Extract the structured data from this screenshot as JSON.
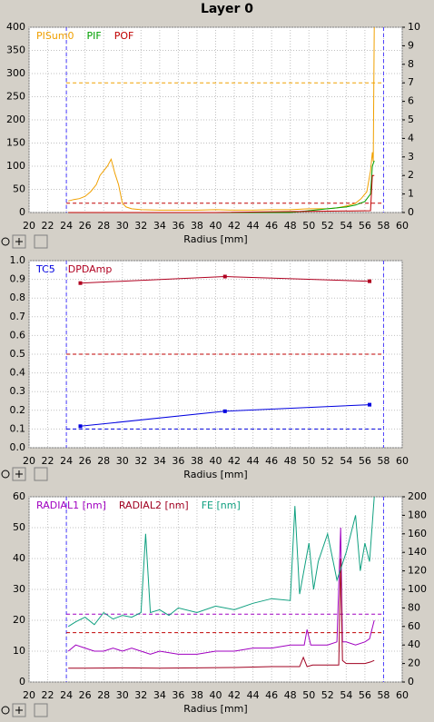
{
  "title": "Layer 0",
  "chart_data": [
    {
      "type": "line",
      "xlabel": "Radius [mm]",
      "xlim": [
        20,
        60
      ],
      "xticks": [
        20,
        22,
        24,
        26,
        28,
        30,
        32,
        34,
        36,
        38,
        40,
        42,
        44,
        46,
        48,
        50,
        52,
        54,
        56,
        58,
        60
      ],
      "ylim": [
        0,
        400
      ],
      "yticks": [
        0,
        50,
        100,
        150,
        200,
        250,
        300,
        350,
        400
      ],
      "y2lim": [
        0,
        10
      ],
      "y2ticks": [
        0,
        1,
        2,
        3,
        4,
        5,
        6,
        7,
        8,
        9,
        10
      ],
      "x_ref_lines": [
        24,
        58
      ],
      "x_ref_color": "#4a3cff",
      "ref_lines": [
        {
          "value": 280,
          "axis": "y",
          "color": "#f0a000"
        },
        {
          "value": 0.5,
          "axis": "y2",
          "color": "#c00000"
        }
      ],
      "series": [
        {
          "name": "PISum0",
          "color": "#f0a000",
          "x": [
            24.2,
            24.8,
            25.4,
            26,
            26.6,
            27.2,
            27.6,
            28,
            28.4,
            28.8,
            29.2,
            29.6,
            30,
            30.4,
            31,
            32,
            34,
            36,
            38,
            40,
            42,
            44,
            46,
            48,
            50,
            52,
            53,
            54,
            55,
            55.6,
            56.2,
            56.6,
            56.8,
            56.9,
            57
          ],
          "values": [
            25,
            28,
            30,
            35,
            45,
            60,
            80,
            90,
            100,
            115,
            85,
            60,
            20,
            12,
            8,
            6,
            5,
            5,
            5,
            6,
            5,
            5,
            6,
            6,
            8,
            8,
            10,
            14,
            20,
            30,
            45,
            90,
            130,
            110,
            400
          ]
        },
        {
          "name": "PIF",
          "color": "#00a000",
          "axis": "y2",
          "x": [
            24.2,
            30,
            40,
            48,
            50,
            52,
            54,
            55,
            56,
            56.6,
            56.8,
            57
          ],
          "values": [
            0,
            0,
            0,
            0,
            0.1,
            0.2,
            0.3,
            0.4,
            0.6,
            1,
            2.5,
            2.8
          ]
        },
        {
          "name": "POF",
          "color": "#c00000",
          "axis": "y2",
          "x": [
            24.2,
            40,
            56.6,
            56.8,
            57
          ],
          "values": [
            0,
            0,
            0.1,
            2,
            2
          ]
        }
      ]
    },
    {
      "type": "line",
      "xlabel": "Radius [mm]",
      "markers": true,
      "xlim": [
        20,
        60
      ],
      "xticks": [
        20,
        22,
        24,
        26,
        28,
        30,
        32,
        34,
        36,
        38,
        40,
        42,
        44,
        46,
        48,
        50,
        52,
        54,
        56,
        58,
        60
      ],
      "ylim": [
        0,
        1
      ],
      "yticks": [
        {
          "value": 0,
          "label": "0.0"
        },
        0.1,
        0.2,
        0.3,
        0.4,
        0.5,
        0.6,
        0.7,
        0.8,
        0.9,
        {
          "value": 1,
          "label": "1.0"
        }
      ],
      "x_ref_lines": [
        24,
        58
      ],
      "x_ref_color": "#4a3cff",
      "ref_lines": [
        {
          "value": 0.1,
          "axis": "y",
          "color": "#0000e0"
        },
        {
          "value": 0.5,
          "axis": "y",
          "color": "#c00000"
        }
      ],
      "series": [
        {
          "name": "TC5",
          "color": "#0000e0",
          "x": [
            25.5,
            41,
            56.5
          ],
          "values": [
            0.115,
            0.195,
            0.23
          ]
        },
        {
          "name": "DPDAmp",
          "color": "#b00020",
          "x": [
            25.5,
            41,
            56.5
          ],
          "values": [
            0.88,
            0.915,
            0.89
          ]
        }
      ]
    },
    {
      "type": "line",
      "xlabel": "Radius [mm]",
      "xlim": [
        20,
        60
      ],
      "xticks": [
        20,
        22,
        24,
        26,
        28,
        30,
        32,
        34,
        36,
        38,
        40,
        42,
        44,
        46,
        48,
        50,
        52,
        54,
        56,
        58,
        60
      ],
      "ylim": [
        0,
        60
      ],
      "yticks": [
        0,
        10,
        20,
        30,
        40,
        50,
        60
      ],
      "y2lim": [
        0,
        200
      ],
      "y2ticks": [
        0,
        20,
        40,
        60,
        80,
        100,
        120,
        140,
        160,
        180,
        200
      ],
      "x_ref_lines": [
        24,
        58
      ],
      "x_ref_color": "#4a3cff",
      "ref_lines": [
        {
          "value": 16,
          "axis": "y",
          "color": "#c00000"
        },
        {
          "value": 22,
          "axis": "y",
          "color": "#a000c0"
        }
      ],
      "series": [
        {
          "name": "RADIAL1 [nm]",
          "color": "#a000c0",
          "x": [
            24.2,
            25,
            26,
            27,
            28,
            29,
            30,
            31,
            32,
            33,
            34,
            36,
            38,
            40,
            42,
            44,
            46,
            48,
            49.5,
            49.8,
            50.2,
            51,
            52,
            53,
            53.4,
            53.6,
            54,
            55,
            56,
            56.5,
            57
          ],
          "values": [
            10,
            12,
            11,
            10,
            10,
            11,
            10,
            11,
            10,
            9,
            10,
            9,
            9,
            10,
            10,
            11,
            11,
            12,
            12,
            17,
            12,
            12,
            12,
            13,
            50,
            13,
            13,
            12,
            13,
            14,
            20
          ]
        },
        {
          "name": "RADIAL2 [nm]",
          "color": "#a00020",
          "x": [
            24.2,
            26,
            30,
            34,
            38,
            42,
            46,
            49,
            49.4,
            49.8,
            50.4,
            52,
            53.2,
            53.4,
            53.6,
            54,
            56,
            56.6,
            57
          ],
          "values": [
            4.5,
            4.5,
            4.6,
            4.5,
            4.6,
            4.7,
            5,
            5,
            8,
            5,
            5.5,
            5.5,
            5.5,
            40,
            7,
            6,
            6,
            6.5,
            7
          ]
        },
        {
          "name": "FE [nm]",
          "color": "#10a080",
          "axis": "y2",
          "x": [
            24.2,
            25,
            26,
            27,
            28,
            29,
            30,
            31,
            32,
            32.5,
            33,
            34,
            35,
            36,
            38,
            40,
            42,
            44,
            46,
            48,
            48.5,
            49,
            50,
            50.5,
            51,
            52,
            53,
            54,
            55,
            55.5,
            56,
            56.5,
            57
          ],
          "values": [
            60,
            65,
            70,
            62,
            75,
            68,
            72,
            70,
            75,
            160,
            75,
            78,
            72,
            80,
            75,
            82,
            78,
            85,
            90,
            88,
            190,
            95,
            150,
            100,
            130,
            160,
            110,
            140,
            180,
            120,
            150,
            130,
            200
          ]
        }
      ]
    }
  ]
}
